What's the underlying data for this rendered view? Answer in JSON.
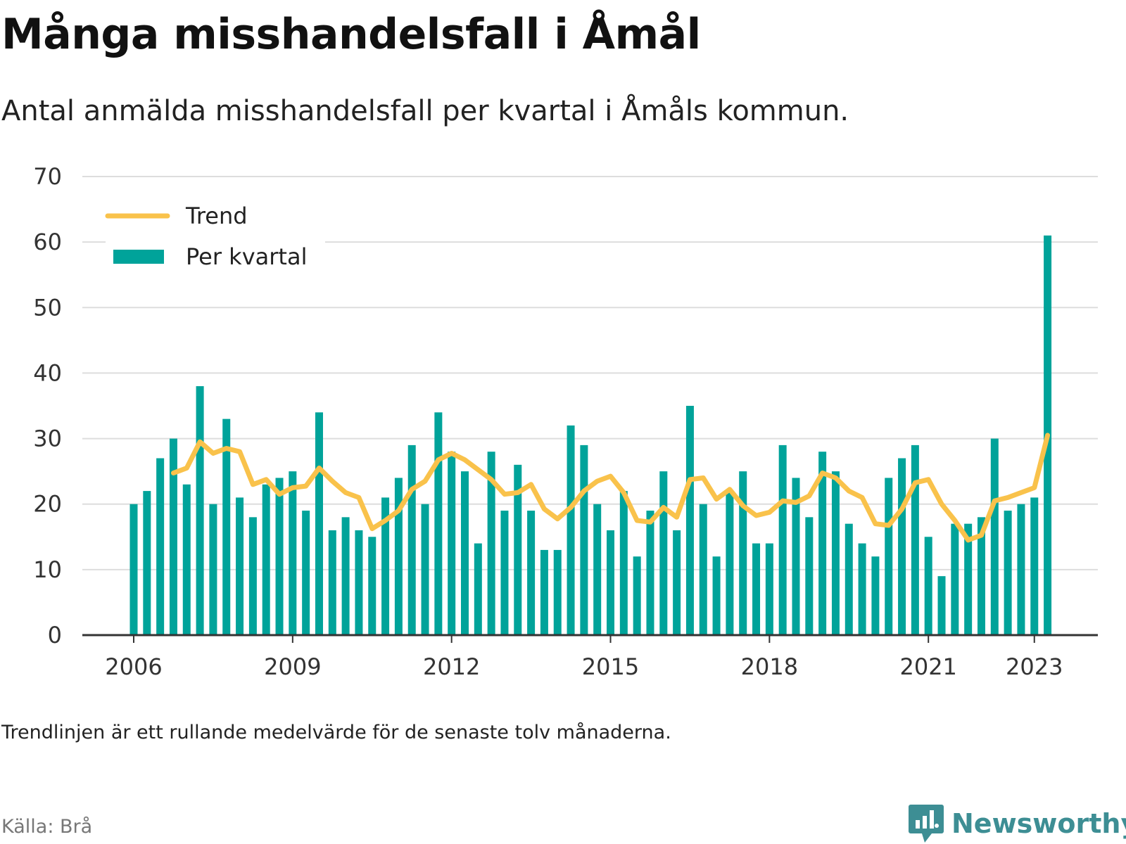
{
  "header": {
    "title": "Många misshandelsfall i Åmål",
    "subtitle": "Antal anmälda misshandelsfall per kvartal i Åmåls kommun."
  },
  "footer": {
    "note": "Trendlinjen är ett rullande medelvärde för de senaste tolv månaderna.",
    "source": "Källa: Brå",
    "logo_text": "Newsworthy"
  },
  "colors": {
    "bar": "#00a39a",
    "trend": "#f9c24b",
    "grid": "#dddddd",
    "axis": "#333333",
    "logo": "#3d8e94"
  },
  "chart_data": {
    "type": "bar",
    "x_start": "2006 Q1",
    "ylim": [
      0,
      70
    ],
    "yticks": [
      0,
      10,
      20,
      30,
      40,
      50,
      60,
      70
    ],
    "xticks": [
      {
        "label": "2006",
        "year": 2006
      },
      {
        "label": "2009",
        "year": 2009
      },
      {
        "label": "2012",
        "year": 2012
      },
      {
        "label": "2015",
        "year": 2015
      },
      {
        "label": "2018",
        "year": 2018
      },
      {
        "label": "2021",
        "year": 2021
      },
      {
        "label": "2023",
        "year": 2023
      }
    ],
    "legend": {
      "position": "top-left"
    },
    "grid": true,
    "series": [
      {
        "name": "Per kvartal",
        "kind": "bar",
        "values": [
          20,
          22,
          27,
          30,
          23,
          38,
          20,
          33,
          21,
          18,
          23,
          24,
          25,
          19,
          34,
          16,
          18,
          16,
          15,
          21,
          24,
          29,
          20,
          34,
          28,
          25,
          14,
          28,
          19,
          26,
          19,
          13,
          13,
          32,
          29,
          20,
          16,
          22,
          12,
          19,
          25,
          16,
          35,
          20,
          12,
          22,
          25,
          14,
          14,
          29,
          24,
          18,
          28,
          25,
          17,
          14,
          12,
          24,
          27,
          29,
          15,
          9,
          17,
          17,
          18,
          30,
          19,
          20,
          21,
          61
        ]
      },
      {
        "name": "Trend",
        "kind": "line",
        "start_index": 3,
        "values": [
          24.75,
          25.5,
          29.5,
          27.75,
          28.5,
          28,
          23,
          23.75,
          21.5,
          22.5,
          22.75,
          25.5,
          23.5,
          21.75,
          21,
          16.25,
          17.5,
          19,
          22.25,
          23.5,
          26.75,
          27.75,
          26.75,
          25.25,
          23.75,
          21.5,
          21.75,
          23,
          19.25,
          17.75,
          19.5,
          22,
          23.5,
          24.25,
          21.75,
          17.5,
          17.25,
          19.5,
          18,
          23.75,
          24,
          20.75,
          22.25,
          19.75,
          18.25,
          18.75,
          20.5,
          20.25,
          21.25,
          24.75,
          24,
          22,
          21,
          17,
          16.75,
          19.25,
          23.25,
          23.75,
          20,
          17.5,
          14.5,
          15.25,
          20.5,
          21,
          21.75,
          22.5,
          30.5
        ]
      }
    ]
  }
}
